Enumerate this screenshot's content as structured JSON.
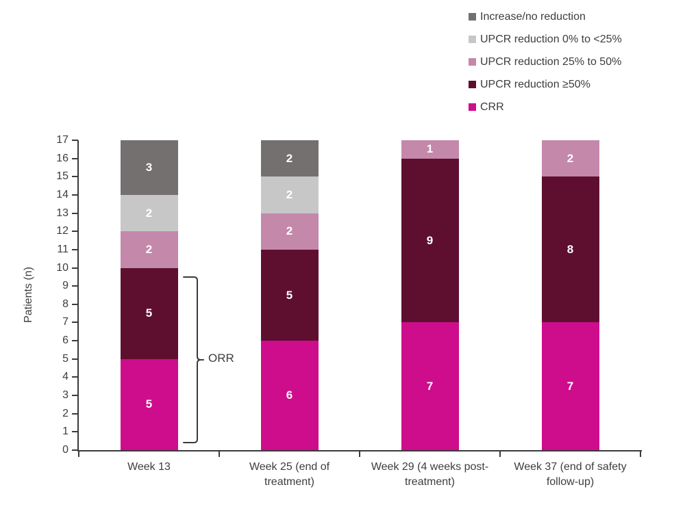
{
  "chart_data": {
    "type": "stacked_bar",
    "title": "",
    "ylabel": "Patients (n)",
    "ylim": [
      0,
      17
    ],
    "ytick_step": 1,
    "grid": false,
    "legend_position": "top-right",
    "bar_label_color": "#ffffff",
    "categories": [
      "Week 13",
      "Week 25 (end of treatment)",
      "Week 29 (4 weeks post-treatment)",
      "Week 37 (end of safety follow-up)"
    ],
    "series": [
      {
        "name": "CRR",
        "color": "#ce0d8c",
        "values": [
          5,
          6,
          7,
          7
        ]
      },
      {
        "name": "UPCR reduction ≥50%",
        "color": "#5e0f2f",
        "values": [
          5,
          5,
          9,
          8
        ]
      },
      {
        "name": "UPCR reduction 25% to 50%",
        "color": "#c488ab",
        "values": [
          2,
          2,
          1,
          2
        ]
      },
      {
        "name": "UPCR reduction 0% to <25%",
        "color": "#c8c7c8",
        "values": [
          2,
          2,
          0,
          0
        ]
      },
      {
        "name": "Increase/no reduction",
        "color": "#747070",
        "values": [
          3,
          2,
          0,
          0
        ]
      }
    ],
    "legend": [
      {
        "label": "Increase/no reduction",
        "color": "#747070"
      },
      {
        "label": "UPCR reduction 0% to <25%",
        "color": "#c8c7c8"
      },
      {
        "label": "UPCR reduction 25% to 50%",
        "color": "#c488ab"
      },
      {
        "label": "UPCR reduction ≥50%",
        "color": "#5e0f2f"
      },
      {
        "label": "CRR",
        "color": "#ce0d8c"
      }
    ],
    "annotation": {
      "label": "ORR",
      "category": "Week 13",
      "covers_series": [
        "CRR",
        "UPCR reduction ≥50%"
      ],
      "value_span": [
        0,
        10
      ]
    }
  }
}
